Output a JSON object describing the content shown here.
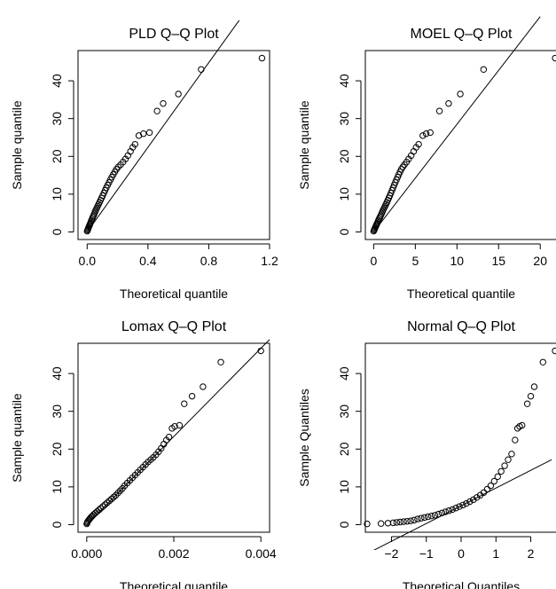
{
  "chart_data": [
    {
      "type": "scatter",
      "title": "PLD Q–Q Plot",
      "xlabel": "Theoretical quantile",
      "ylabel": "Sample quantile",
      "xlim": [
        -0.06,
        1.2
      ],
      "ylim": [
        -2,
        48
      ],
      "xticks": [
        0.0,
        0.4,
        0.8,
        1.2
      ],
      "xtick_labels": [
        "0.0",
        "0.4",
        "0.8",
        "1.2"
      ],
      "yticks": [
        0,
        10,
        20,
        30,
        40
      ],
      "ytick_labels": [
        "0",
        "10",
        "20",
        "30",
        "40"
      ],
      "reference_line": [
        [
          0,
          0
        ],
        [
          1.0,
          56
        ]
      ],
      "points": [
        [
          0.0,
          0.2
        ],
        [
          0.003,
          0.5
        ],
        [
          0.006,
          0.8
        ],
        [
          0.009,
          1.1
        ],
        [
          0.012,
          1.4
        ],
        [
          0.015,
          1.7
        ],
        [
          0.018,
          2.0
        ],
        [
          0.021,
          2.3
        ],
        [
          0.025,
          2.7
        ],
        [
          0.029,
          3.1
        ],
        [
          0.033,
          3.5
        ],
        [
          0.037,
          3.9
        ],
        [
          0.042,
          4.3
        ],
        [
          0.047,
          4.8
        ],
        [
          0.052,
          5.3
        ],
        [
          0.057,
          5.8
        ],
        [
          0.063,
          6.3
        ],
        [
          0.069,
          6.8
        ],
        [
          0.075,
          7.3
        ],
        [
          0.081,
          7.8
        ],
        [
          0.088,
          8.4
        ],
        [
          0.095,
          9.0
        ],
        [
          0.102,
          9.6
        ],
        [
          0.11,
          10.3
        ],
        [
          0.118,
          11.0
        ],
        [
          0.126,
          11.7
        ],
        [
          0.135,
          12.4
        ],
        [
          0.144,
          13.1
        ],
        [
          0.153,
          13.8
        ],
        [
          0.162,
          14.5
        ],
        [
          0.172,
          15.2
        ],
        [
          0.182,
          15.9
        ],
        [
          0.193,
          16.6
        ],
        [
          0.205,
          17.2
        ],
        [
          0.22,
          17.8
        ],
        [
          0.236,
          18.5
        ],
        [
          0.252,
          19.3
        ],
        [
          0.268,
          20.2
        ],
        [
          0.285,
          21.3
        ],
        [
          0.3,
          22.4
        ],
        [
          0.315,
          23.2
        ],
        [
          0.34,
          25.5
        ],
        [
          0.37,
          26.0
        ],
        [
          0.41,
          26.3
        ],
        [
          0.46,
          32.0
        ],
        [
          0.5,
          34.0
        ],
        [
          0.6,
          36.5
        ],
        [
          0.75,
          43.0
        ],
        [
          1.15,
          46.0
        ]
      ]
    },
    {
      "type": "scatter",
      "title": "MOEL Q–Q Plot",
      "xlabel": "Theoretical quantile",
      "ylabel": "Sample quantile",
      "xlim": [
        -1.0,
        22
      ],
      "ylim": [
        -2,
        48
      ],
      "xticks": [
        0,
        5,
        10,
        15,
        20
      ],
      "xtick_labels": [
        "0",
        "5",
        "10",
        "15",
        "20"
      ],
      "yticks": [
        0,
        10,
        20,
        30,
        40
      ],
      "ytick_labels": [
        "0",
        "10",
        "20",
        "30",
        "40"
      ],
      "reference_line": [
        [
          0,
          0
        ],
        [
          20,
          57
        ]
      ],
      "points": [
        [
          0.0,
          0.2
        ],
        [
          0.06,
          0.5
        ],
        [
          0.12,
          0.8
        ],
        [
          0.18,
          1.1
        ],
        [
          0.24,
          1.4
        ],
        [
          0.3,
          1.7
        ],
        [
          0.36,
          2.0
        ],
        [
          0.42,
          2.3
        ],
        [
          0.5,
          2.7
        ],
        [
          0.58,
          3.1
        ],
        [
          0.66,
          3.5
        ],
        [
          0.75,
          3.9
        ],
        [
          0.84,
          4.3
        ],
        [
          0.94,
          4.8
        ],
        [
          1.04,
          5.3
        ],
        [
          1.14,
          5.8
        ],
        [
          1.25,
          6.3
        ],
        [
          1.36,
          6.8
        ],
        [
          1.47,
          7.3
        ],
        [
          1.58,
          7.8
        ],
        [
          1.7,
          8.4
        ],
        [
          1.82,
          9.0
        ],
        [
          1.94,
          9.6
        ],
        [
          2.07,
          10.3
        ],
        [
          2.2,
          11.0
        ],
        [
          2.33,
          11.7
        ],
        [
          2.46,
          12.4
        ],
        [
          2.6,
          13.1
        ],
        [
          2.74,
          13.8
        ],
        [
          2.88,
          14.5
        ],
        [
          3.02,
          15.2
        ],
        [
          3.17,
          15.9
        ],
        [
          3.32,
          16.6
        ],
        [
          3.5,
          17.2
        ],
        [
          3.7,
          17.8
        ],
        [
          3.95,
          18.5
        ],
        [
          4.2,
          19.3
        ],
        [
          4.5,
          20.2
        ],
        [
          4.8,
          21.3
        ],
        [
          5.1,
          22.4
        ],
        [
          5.4,
          23.2
        ],
        [
          5.9,
          25.5
        ],
        [
          6.3,
          26.0
        ],
        [
          6.8,
          26.3
        ],
        [
          7.9,
          32.0
        ],
        [
          9.0,
          34.0
        ],
        [
          10.4,
          36.5
        ],
        [
          13.2,
          43.0
        ],
        [
          21.8,
          46.0
        ]
      ]
    },
    {
      "type": "scatter",
      "title": "Lomax Q–Q Plot",
      "xlabel": "Theoretical quantile",
      "ylabel": "Sample quantile",
      "xlim": [
        -0.0002,
        0.0042
      ],
      "ylim": [
        -2,
        48
      ],
      "xticks": [
        0.0,
        0.002,
        0.004
      ],
      "xtick_labels": [
        "0.000",
        "0.002",
        "0.004"
      ],
      "yticks": [
        0,
        10,
        20,
        30,
        40
      ],
      "ytick_labels": [
        "0",
        "10",
        "20",
        "30",
        "40"
      ],
      "reference_line": [
        [
          0,
          0
        ],
        [
          0.0042,
          49
        ]
      ],
      "points": [
        [
          0.0,
          0.2
        ],
        [
          1e-05,
          0.5
        ],
        [
          2e-05,
          0.8
        ],
        [
          4e-05,
          1.1
        ],
        [
          6e-05,
          1.4
        ],
        [
          8e-05,
          1.7
        ],
        [
          0.0001,
          2.0
        ],
        [
          0.00013,
          2.3
        ],
        [
          0.00016,
          2.7
        ],
        [
          0.0002,
          3.1
        ],
        [
          0.00024,
          3.5
        ],
        [
          0.00028,
          3.9
        ],
        [
          0.00032,
          4.3
        ],
        [
          0.00037,
          4.8
        ],
        [
          0.00042,
          5.3
        ],
        [
          0.00047,
          5.8
        ],
        [
          0.00052,
          6.3
        ],
        [
          0.00057,
          6.8
        ],
        [
          0.00062,
          7.3
        ],
        [
          0.00067,
          7.8
        ],
        [
          0.00072,
          8.4
        ],
        [
          0.00077,
          9.0
        ],
        [
          0.00082,
          9.6
        ],
        [
          0.00087,
          10.3
        ],
        [
          0.00093,
          11.0
        ],
        [
          0.00099,
          11.7
        ],
        [
          0.00105,
          12.4
        ],
        [
          0.00111,
          13.1
        ],
        [
          0.00117,
          13.8
        ],
        [
          0.00123,
          14.5
        ],
        [
          0.00129,
          15.2
        ],
        [
          0.00135,
          15.9
        ],
        [
          0.00141,
          16.6
        ],
        [
          0.00147,
          17.2
        ],
        [
          0.00153,
          17.8
        ],
        [
          0.00159,
          18.5
        ],
        [
          0.00165,
          19.3
        ],
        [
          0.00171,
          20.2
        ],
        [
          0.00177,
          21.3
        ],
        [
          0.00183,
          22.4
        ],
        [
          0.00189,
          23.2
        ],
        [
          0.00196,
          25.5
        ],
        [
          0.00202,
          26.0
        ],
        [
          0.00213,
          26.3
        ],
        [
          0.00224,
          32.0
        ],
        [
          0.00242,
          34.0
        ],
        [
          0.00267,
          36.5
        ],
        [
          0.00308,
          43.0
        ],
        [
          0.004,
          46.0
        ]
      ]
    },
    {
      "type": "scatter",
      "title": "Normal Q–Q Plot",
      "xlabel": "Theoretical Quantiles",
      "ylabel": "Sample Quantiles",
      "xlim": [
        -2.75,
        2.75
      ],
      "ylim": [
        -2,
        48
      ],
      "xticks": [
        -2,
        -1,
        0,
        1,
        2
      ],
      "xtick_labels": [
        "−2",
        "−1",
        "0",
        "1",
        "2"
      ],
      "yticks": [
        0,
        10,
        20,
        30,
        40
      ],
      "ytick_labels": [
        "0",
        "10",
        "20",
        "30",
        "40"
      ],
      "reference_line": [
        [
          -2.6,
          -7.2
        ],
        [
          2.6,
          17.2
        ]
      ],
      "points": [
        [
          -2.7,
          0.2
        ],
        [
          -2.3,
          0.3
        ],
        [
          -2.1,
          0.4
        ],
        [
          -1.95,
          0.5
        ],
        [
          -1.85,
          0.6
        ],
        [
          -1.75,
          0.7
        ],
        [
          -1.65,
          0.8
        ],
        [
          -1.55,
          0.9
        ],
        [
          -1.45,
          1.0
        ],
        [
          -1.35,
          1.2
        ],
        [
          -1.25,
          1.5
        ],
        [
          -1.15,
          1.7
        ],
        [
          -1.05,
          1.9
        ],
        [
          -0.95,
          2.1
        ],
        [
          -0.85,
          2.3
        ],
        [
          -0.75,
          2.5
        ],
        [
          -0.65,
          2.8
        ],
        [
          -0.55,
          3.1
        ],
        [
          -0.45,
          3.4
        ],
        [
          -0.35,
          3.7
        ],
        [
          -0.25,
          4.0
        ],
        [
          -0.15,
          4.4
        ],
        [
          -0.05,
          4.8
        ],
        [
          0.05,
          5.2
        ],
        [
          0.15,
          5.6
        ],
        [
          0.25,
          6.1
        ],
        [
          0.35,
          6.6
        ],
        [
          0.45,
          7.2
        ],
        [
          0.55,
          7.8
        ],
        [
          0.65,
          8.5
        ],
        [
          0.75,
          9.4
        ],
        [
          0.85,
          10.3
        ],
        [
          0.95,
          11.5
        ],
        [
          1.05,
          12.7
        ],
        [
          1.15,
          14.1
        ],
        [
          1.25,
          15.6
        ],
        [
          1.35,
          17.2
        ],
        [
          1.45,
          18.7
        ],
        [
          1.55,
          22.4
        ],
        [
          1.62,
          25.5
        ],
        [
          1.68,
          26.0
        ],
        [
          1.75,
          26.3
        ],
        [
          1.9,
          32.0
        ],
        [
          2.0,
          34.0
        ],
        [
          2.1,
          36.5
        ],
        [
          2.35,
          43.0
        ],
        [
          2.7,
          46.0
        ]
      ]
    }
  ]
}
